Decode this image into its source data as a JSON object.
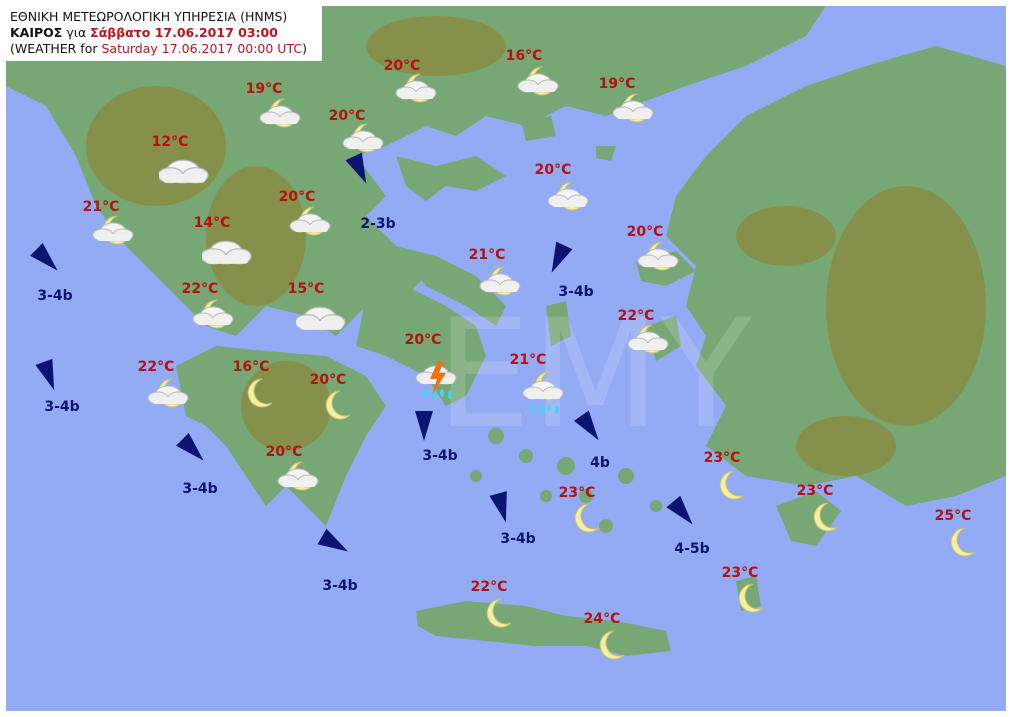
{
  "header": {
    "line1": "ΕΘΝΙΚΗ ΜΕΤΕΩΡΟΛΟΓΙΚΗ ΥΠΗΡΕΣΙΑ (HNMS)",
    "line2_bold": "ΚΑΙΡΟΣ",
    "line2_mid": " για ",
    "line2_date": "Σάββατο 17.06.2017 03:00",
    "line3_prefix": "(WEATHER for ",
    "line3_date": "Saturday 17.06.2017 00:00 UTC",
    "line3_suffix": ")"
  },
  "watermark": "EMY",
  "colors": {
    "sea": "#93abf5",
    "land": "#77a775",
    "mountain": "#8a8a3e",
    "temp": "#b80f0f",
    "wind": "#0b1470"
  },
  "stations": [
    {
      "temp": "20°C",
      "icon": "moon-cloud"
    },
    {
      "temp": "16°C",
      "icon": "moon-cloud"
    },
    {
      "temp": "19°C",
      "icon": "moon-cloud"
    },
    {
      "temp": "19°C",
      "icon": "moon-cloud"
    },
    {
      "temp": "20°C",
      "icon": "moon-cloud"
    },
    {
      "temp": "12°C",
      "icon": "cloud"
    },
    {
      "temp": "20°C",
      "icon": "moon-cloud"
    },
    {
      "temp": "21°C",
      "icon": "moon-cloud"
    },
    {
      "temp": "20°C",
      "icon": "moon-cloud"
    },
    {
      "temp": "14°C",
      "icon": "cloud"
    },
    {
      "temp": "20°C",
      "icon": "moon-cloud"
    },
    {
      "temp": "21°C",
      "icon": "moon-cloud"
    },
    {
      "temp": "22°C",
      "icon": "moon-cloud"
    },
    {
      "temp": "15°C",
      "icon": "cloud"
    },
    {
      "temp": "22°C",
      "icon": "moon-cloud"
    },
    {
      "temp": "20°C",
      "icon": "thunderstorm"
    },
    {
      "temp": "21°C",
      "icon": "rain-cloud"
    },
    {
      "temp": "22°C",
      "icon": "moon-cloud"
    },
    {
      "temp": "16°C",
      "icon": "moon"
    },
    {
      "temp": "20°C",
      "icon": "moon"
    },
    {
      "temp": "20°C",
      "icon": "moon-cloud"
    },
    {
      "temp": "23°C",
      "icon": "moon"
    },
    {
      "temp": "23°C",
      "icon": "moon"
    },
    {
      "temp": "23°C",
      "icon": "moon"
    },
    {
      "temp": "25°C",
      "icon": "moon"
    },
    {
      "temp": "23°C",
      "icon": "moon"
    },
    {
      "temp": "22°C",
      "icon": "moon"
    },
    {
      "temp": "24°C",
      "icon": "moon"
    }
  ],
  "winds": [
    {
      "label": "3-4b",
      "direction": "NW"
    },
    {
      "label": "3-4b",
      "direction": "N"
    },
    {
      "label": "3-4b",
      "direction": "NW"
    },
    {
      "label": "3-4b",
      "direction": "NW"
    },
    {
      "label": "2-3b",
      "direction": "N"
    },
    {
      "label": "3-4b",
      "direction": "NE"
    },
    {
      "label": "3-4b",
      "direction": "N"
    },
    {
      "label": "3-4b",
      "direction": "N"
    },
    {
      "label": "4b",
      "direction": "NW"
    },
    {
      "label": "4-5b",
      "direction": "NW"
    }
  ]
}
